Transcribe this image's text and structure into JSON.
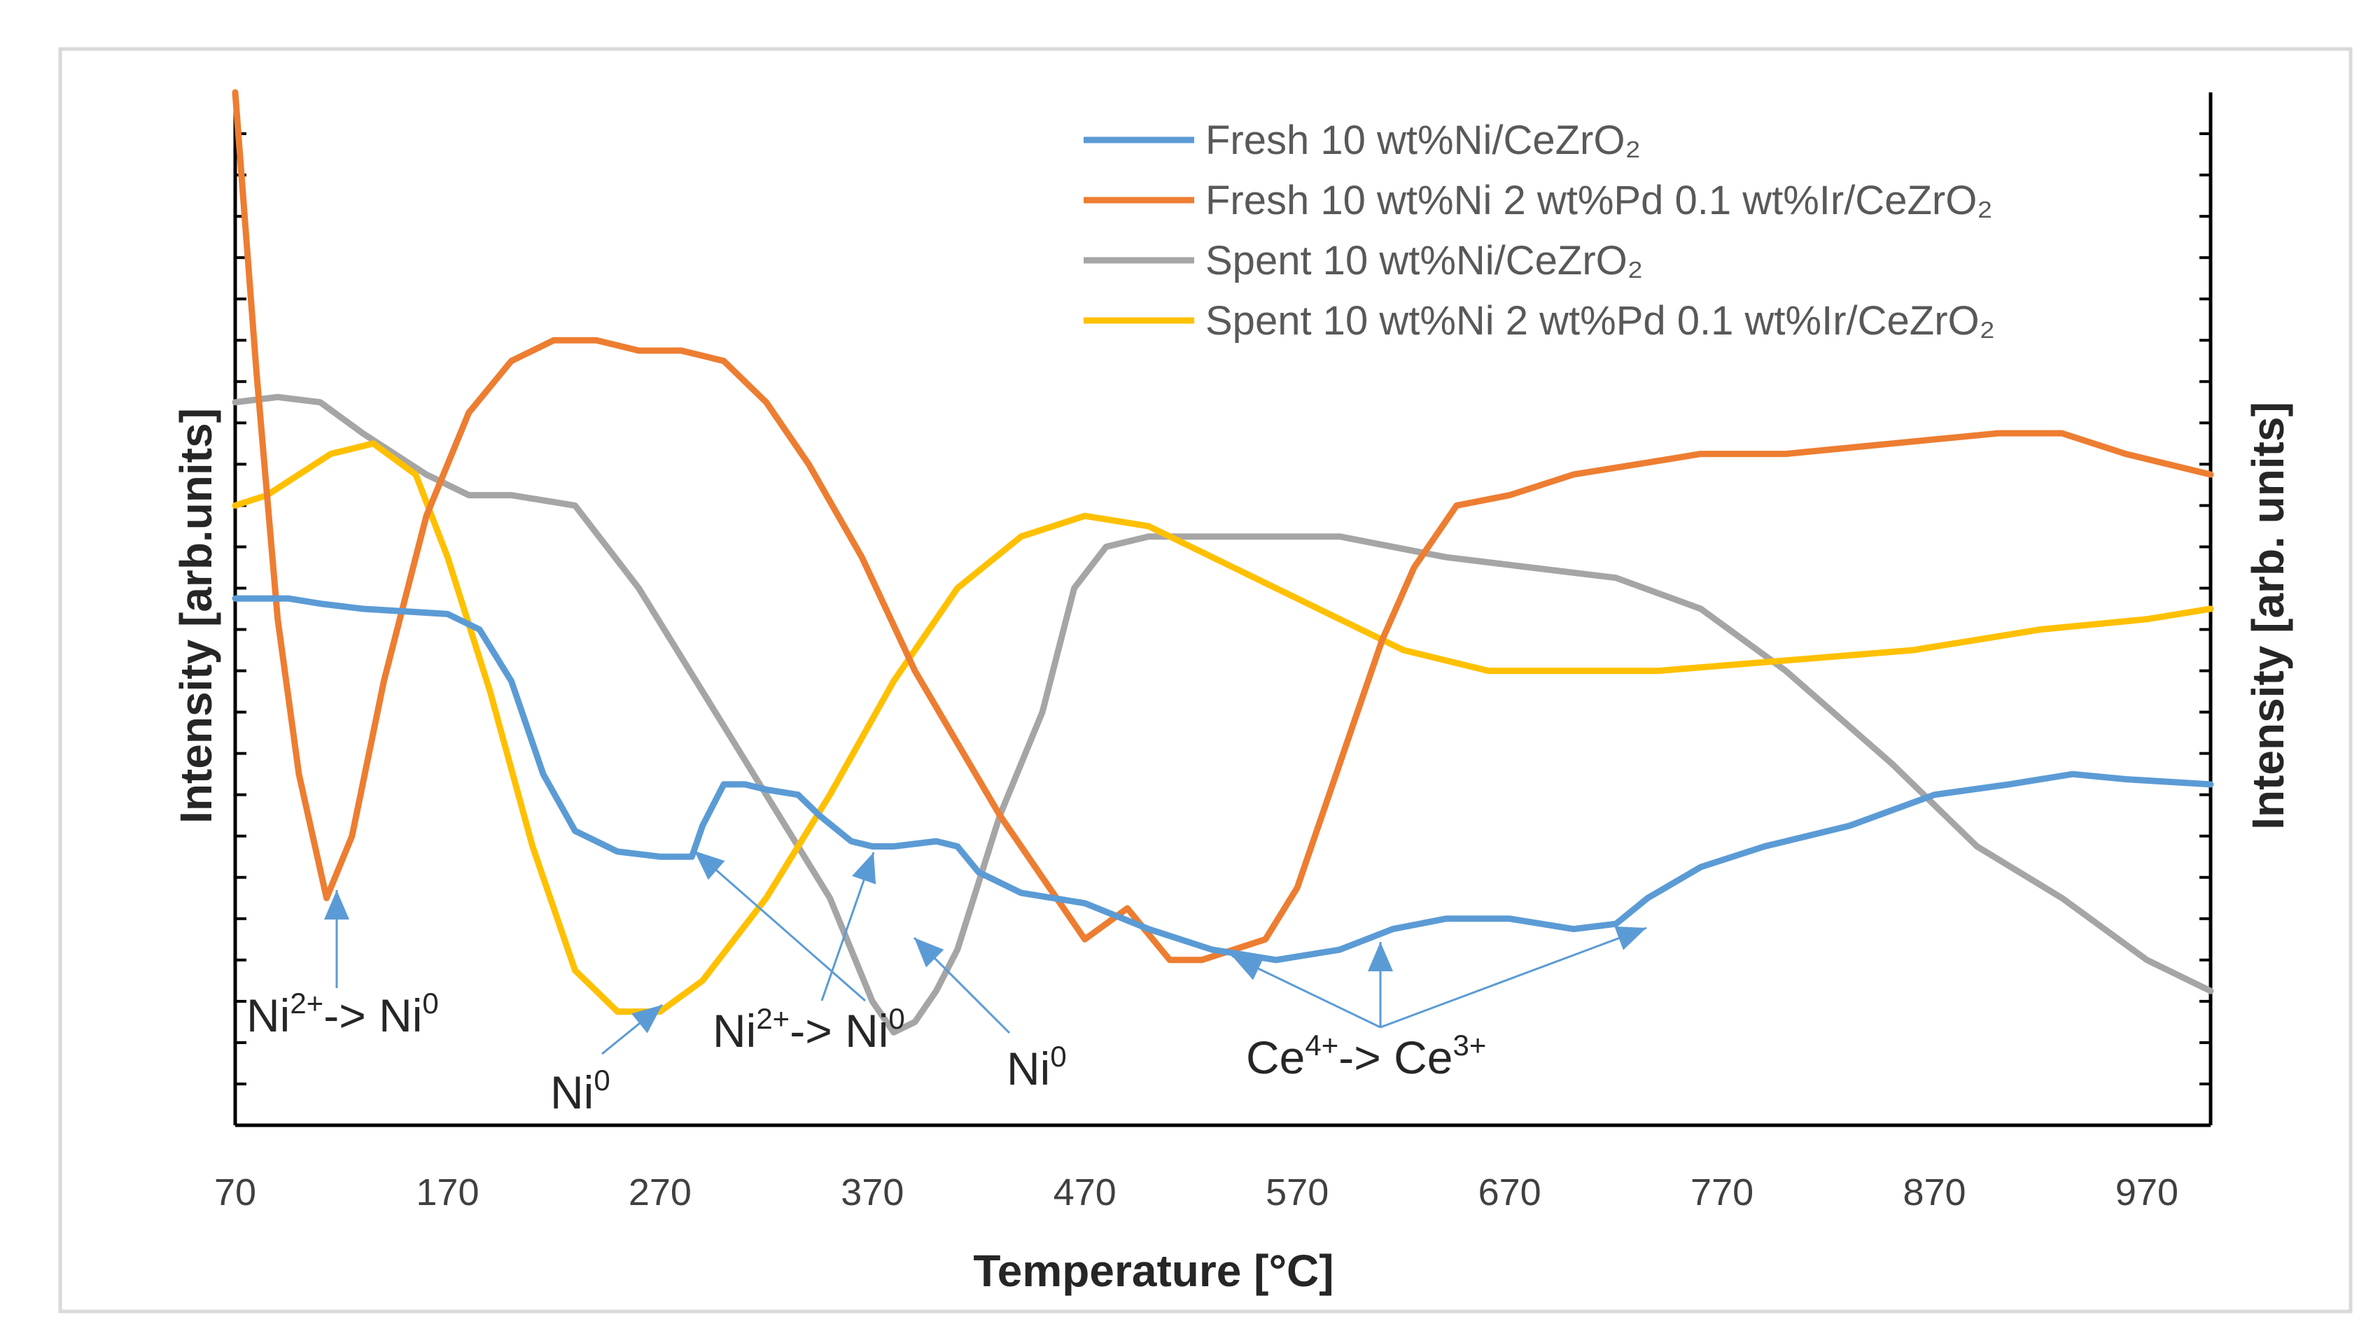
{
  "chart_data": {
    "type": "line",
    "title": "",
    "xlabel": "Temperature [°C]",
    "ylabel_left": "Intensity [arb.units]",
    "ylabel_right": "Intensity [arb. units]",
    "xlim": [
      70,
      1000
    ],
    "ylim": [
      0,
      100
    ],
    "x_ticks": [
      70,
      170,
      270,
      370,
      470,
      570,
      670,
      770,
      870,
      970
    ],
    "x_tick_labels": [
      "70",
      "170",
      "270",
      "370",
      "470",
      "570",
      "670",
      "770",
      "870",
      "970"
    ],
    "grid": false,
    "legend_position": "top-right",
    "series": [
      {
        "name": "Fresh 10 wt%Ni/CeZrO₂",
        "color": "#5B9BD5",
        "x": [
          70,
          95,
          110,
          130,
          170,
          185,
          200,
          215,
          230,
          250,
          270,
          285,
          290,
          300,
          310,
          320,
          335,
          345,
          360,
          370,
          380,
          400,
          410,
          420,
          440,
          470,
          500,
          530,
          560,
          590,
          615,
          640,
          670,
          700,
          720,
          735,
          760,
          790,
          830,
          870,
          905,
          935,
          960,
          1000
        ],
        "y": [
          51,
          51,
          50.5,
          50,
          49.5,
          48,
          43,
          34,
          28.5,
          26.5,
          26,
          26,
          29,
          33,
          33,
          32.5,
          32,
          30,
          27.5,
          27,
          27,
          27.5,
          27,
          24.5,
          22.5,
          21.5,
          19,
          17,
          16,
          17,
          19,
          20,
          20,
          19,
          19.5,
          22,
          25,
          27,
          29,
          32,
          33,
          34,
          33.5,
          33
        ]
      },
      {
        "name": "Fresh 10 wt%Ni 2 wt%Pd 0.1 wt%Ir/CeZrO₂",
        "color": "#ED7D31",
        "x": [
          70,
          80,
          90,
          100,
          113,
          125,
          140,
          160,
          180,
          200,
          220,
          240,
          260,
          280,
          300,
          320,
          340,
          365,
          390,
          410,
          430,
          450,
          470,
          490,
          510,
          525,
          540,
          555,
          570,
          590,
          610,
          625,
          645,
          670,
          700,
          730,
          760,
          800,
          850,
          900,
          930,
          960,
          1000
        ],
        "y": [
          100,
          73,
          49,
          34,
          22,
          28,
          43,
          59,
          69,
          74,
          76,
          76,
          75,
          75,
          74,
          70,
          64,
          55,
          44,
          37,
          30,
          24,
          18,
          21,
          16,
          16,
          17,
          18,
          23,
          35,
          47,
          54,
          60,
          61,
          63,
          64,
          65,
          65,
          66,
          67,
          67,
          65,
          63
        ]
      },
      {
        "name": "Spent 10 wt%Ni/CeZrO₂",
        "color": "#A5A5A5",
        "x": [
          70,
          90,
          110,
          130,
          160,
          180,
          200,
          230,
          260,
          290,
          320,
          350,
          370,
          380,
          390,
          400,
          410,
          430,
          450,
          465,
          480,
          500,
          540,
          590,
          640,
          680,
          720,
          760,
          800,
          850,
          890,
          930,
          970,
          1000
        ],
        "y": [
          70,
          70.5,
          70,
          67,
          63,
          61,
          61,
          60,
          52,
          42,
          32,
          22,
          12,
          9,
          10,
          13,
          17,
          30,
          40,
          52,
          56,
          57,
          57,
          57,
          55,
          54,
          53,
          50,
          44,
          35,
          27,
          22,
          16,
          13
        ]
      },
      {
        "name": "Spent 10 wt%Ni 2 wt%Pd 0.1 wt%Ir/CeZrO₂",
        "color": "#FFC000",
        "x": [
          70,
          85,
          100,
          115,
          135,
          155,
          170,
          190,
          210,
          230,
          250,
          270,
          290,
          320,
          350,
          380,
          410,
          440,
          470,
          500,
          540,
          580,
          620,
          660,
          700,
          740,
          800,
          860,
          920,
          970,
          1000
        ],
        "y": [
          60,
          61,
          63,
          65,
          66,
          63,
          55,
          42,
          27,
          15,
          11,
          11,
          14,
          22,
          32,
          43,
          52,
          57,
          59,
          58,
          54,
          50,
          46,
          44,
          44,
          44,
          45,
          46,
          48,
          49,
          50
        ]
      }
    ],
    "annotations": [
      {
        "base": "Ni",
        "sup1": "2+",
        "mid": "-> Ni",
        "sup2": "0"
      },
      {
        "base": "Ni",
        "sup1": "0",
        "mid": "",
        "sup2": ""
      },
      {
        "base": "Ni",
        "sup1": "2+",
        "mid": "-> Ni",
        "sup2": "0"
      },
      {
        "base": "Ni",
        "sup1": "0",
        "mid": "",
        "sup2": ""
      },
      {
        "base": "Ce",
        "sup1": "4+",
        "mid": "-> Ce",
        "sup2": "3+"
      }
    ]
  }
}
